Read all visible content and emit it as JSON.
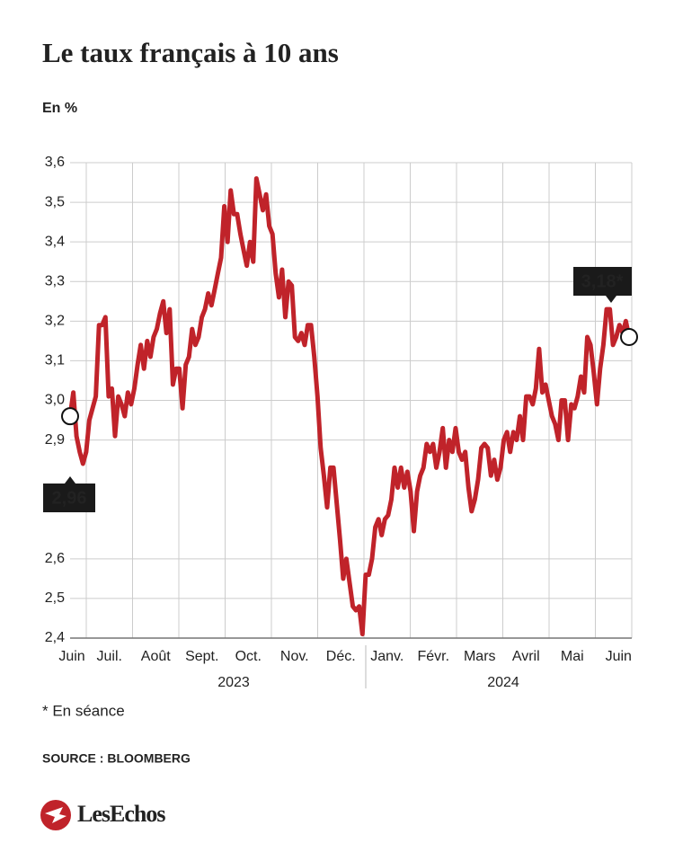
{
  "chart_data": {
    "type": "line",
    "title": "Le taux français à 10 ans",
    "subtitle": "En %",
    "months": [
      "Juin",
      "Juil.",
      "Août",
      "Sept.",
      "Oct.",
      "Nov.",
      "Déc.",
      "Janv.",
      "Févr.",
      "Mars",
      "Avril",
      "Mai",
      "Juin"
    ],
    "years": [
      "2023",
      "2024"
    ],
    "values": [
      2.96,
      3.02,
      2.91,
      2.87,
      2.84,
      2.87,
      2.95,
      2.98,
      3.01,
      3.19,
      3.19,
      3.21,
      3.01,
      3.03,
      2.91,
      3.01,
      2.99,
      2.96,
      3.02,
      2.99,
      3.03,
      3.09,
      3.14,
      3.08,
      3.15,
      3.11,
      3.16,
      3.18,
      3.22,
      3.25,
      3.17,
      3.23,
      3.04,
      3.08,
      3.08,
      2.98,
      3.09,
      3.11,
      3.18,
      3.14,
      3.16,
      3.21,
      3.23,
      3.27,
      3.24,
      3.28,
      3.32,
      3.36,
      3.49,
      3.4,
      3.53,
      3.47,
      3.47,
      3.42,
      3.38,
      3.34,
      3.4,
      3.35,
      3.56,
      3.52,
      3.48,
      3.52,
      3.44,
      3.42,
      3.32,
      3.26,
      3.33,
      3.21,
      3.3,
      3.29,
      3.16,
      3.15,
      3.17,
      3.14,
      3.19,
      3.19,
      3.11,
      3.01,
      2.88,
      2.81,
      2.73,
      2.83,
      2.83,
      2.74,
      2.65,
      2.55,
      2.6,
      2.54,
      2.48,
      2.47,
      2.48,
      2.41,
      2.56,
      2.56,
      2.6,
      2.68,
      2.7,
      2.66,
      2.7,
      2.71,
      2.75,
      2.83,
      2.78,
      2.83,
      2.78,
      2.82,
      2.77,
      2.67,
      2.77,
      2.81,
      2.83,
      2.89,
      2.87,
      2.89,
      2.83,
      2.87,
      2.93,
      2.83,
      2.9,
      2.87,
      2.93,
      2.87,
      2.85,
      2.87,
      2.78,
      2.72,
      2.75,
      2.8,
      2.88,
      2.89,
      2.88,
      2.81,
      2.85,
      2.8,
      2.83,
      2.9,
      2.92,
      2.87,
      2.92,
      2.9,
      2.96,
      2.9,
      3.01,
      3.01,
      2.99,
      3.03,
      3.13,
      3.02,
      3.04,
      3.0,
      2.96,
      2.94,
      2.9,
      3.0,
      3.0,
      2.9,
      2.99,
      2.98,
      3.01,
      3.06,
      3.02,
      3.16,
      3.14,
      3.07,
      2.99,
      3.08,
      3.14,
      3.23,
      3.23,
      3.14,
      3.16,
      3.19,
      3.17,
      3.2,
      3.16
    ],
    "color": "#c0232a",
    "ylim": [
      2.4,
      3.6
    ],
    "yticks": [
      {
        "value": 2.4,
        "label": "2,4"
      },
      {
        "value": 2.5,
        "label": "2,5"
      },
      {
        "value": 2.6,
        "label": "2,6"
      },
      {
        "value": 2.9,
        "label": "2,9"
      },
      {
        "value": 3.0,
        "label": "3,0"
      },
      {
        "value": 3.1,
        "label": "3,1"
      },
      {
        "value": 3.2,
        "label": "3,2"
      },
      {
        "value": 3.3,
        "label": "3,3"
      },
      {
        "value": 3.4,
        "label": "3,4"
      },
      {
        "value": 3.5,
        "label": "3,5"
      },
      {
        "value": 3.6,
        "label": "3,6"
      }
    ],
    "grid": true,
    "annotations": [
      "2,96",
      "3,18*"
    ],
    "footnote": "* En séance",
    "source": "SOURCE : BLOOMBERG",
    "brand": "LesEchos"
  }
}
